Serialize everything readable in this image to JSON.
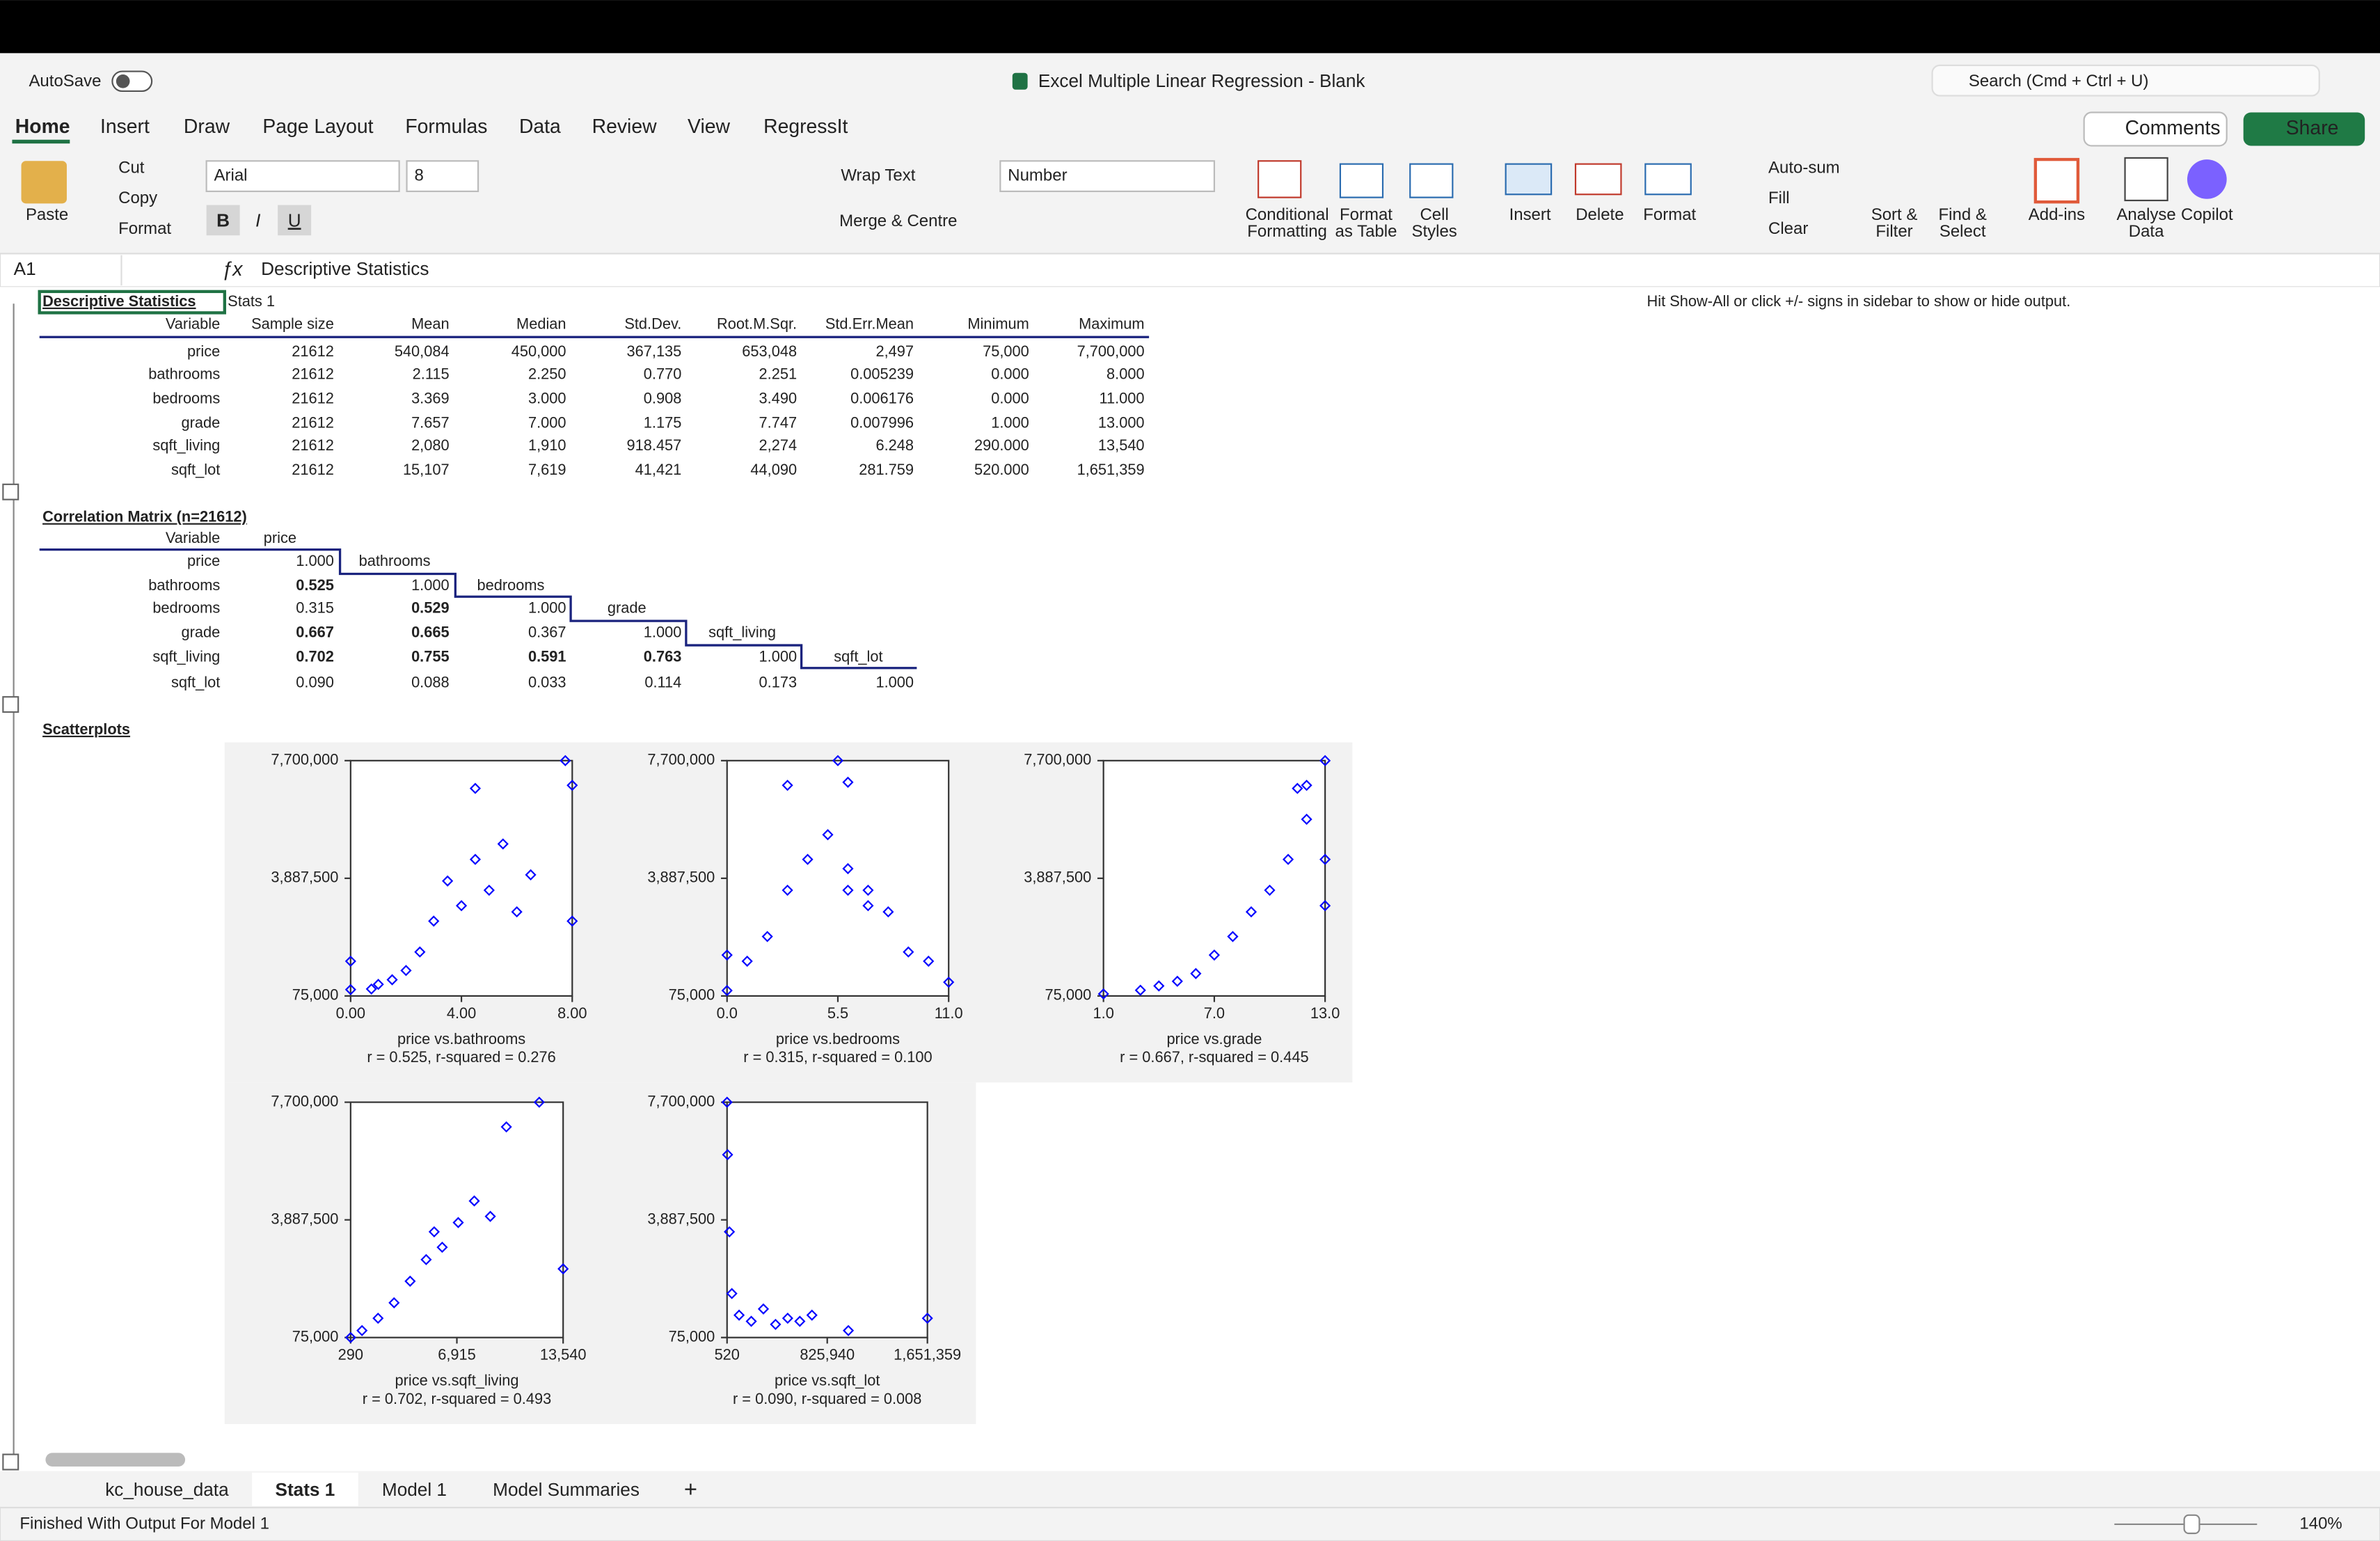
{
  "window": {
    "autosave": "AutoSave",
    "title": "Excel Multiple Linear Regression - Blank",
    "search": "Search (Cmd + Ctrl + U)"
  },
  "ribbon": {
    "tabs": [
      "Home",
      "Insert",
      "Draw",
      "Page Layout",
      "Formulas",
      "Data",
      "Review",
      "View",
      "RegressIt"
    ],
    "comments": "Comments",
    "share": "Share",
    "font": "Arial",
    "font_size": "8",
    "number_format": "Number",
    "format_letters": [
      "B",
      "I",
      "U"
    ],
    "buttons": [
      "Paste",
      "Cut",
      "Copy",
      "Format",
      "Wrap Text",
      "Merge & Centre",
      "Insert",
      "Delete",
      "Format",
      "Auto-sum",
      "Fill",
      "Clear",
      "Add-ins",
      "Copilot"
    ],
    "two_line_buttons": [
      [
        "Conditional",
        "Formatting"
      ],
      [
        "Format",
        "as Table"
      ],
      [
        "Cell",
        "Styles"
      ],
      [
        "Sort &",
        "Filter"
      ],
      [
        "Find &",
        "Select"
      ],
      [
        "Analyse",
        "Data"
      ]
    ]
  },
  "formula_bar": {
    "cell": "A1",
    "content": "Descriptive Statistics"
  },
  "sheet": {
    "hint": "Hit Show-All or click +/- signs in sidebar to show or hide output.",
    "stats_label": "Stats 1",
    "descriptive": {
      "title": "Descriptive Statistics",
      "header": [
        "Variable",
        "Sample size",
        "Mean",
        "Median",
        "Std.Dev.",
        "Root.M.Sqr.",
        "Std.Err.Mean",
        "Minimum",
        "Maximum"
      ],
      "rows": [
        [
          "price",
          "21612",
          "540,084",
          "450,000",
          "367,135",
          "653,048",
          "2,497",
          "75,000",
          "7,700,000"
        ],
        [
          "bathrooms",
          "21612",
          "2.115",
          "2.250",
          "0.770",
          "2.251",
          "0.005239",
          "0.000",
          "8.000"
        ],
        [
          "bedrooms",
          "21612",
          "3.369",
          "3.000",
          "0.908",
          "3.490",
          "0.006176",
          "0.000",
          "11.000"
        ],
        [
          "grade",
          "21612",
          "7.657",
          "7.000",
          "1.175",
          "7.747",
          "0.007996",
          "1.000",
          "13.000"
        ],
        [
          "sqft_living",
          "21612",
          "2,080",
          "1,910",
          "918.457",
          "2,274",
          "6.248",
          "290.000",
          "13,540"
        ],
        [
          "sqft_lot",
          "21612",
          "15,107",
          "7,619",
          "41,421",
          "44,090",
          "281.759",
          "520.000",
          "1,651,359"
        ]
      ]
    },
    "correlation": {
      "title": "Correlation Matrix (n=21612)",
      "header": "Variable",
      "variables": [
        "price",
        "bathrooms",
        "bedrooms",
        "grade",
        "sqft_living",
        "sqft_lot"
      ],
      "rows": [
        [
          "1.000"
        ],
        [
          "0.525",
          "1.000"
        ],
        [
          "0.315",
          "0.529",
          "1.000"
        ],
        [
          "0.667",
          "0.665",
          "0.367",
          "1.000"
        ],
        [
          "0.702",
          "0.755",
          "0.591",
          "0.763",
          "1.000"
        ],
        [
          "0.090",
          "0.088",
          "0.033",
          "0.114",
          "0.173",
          "1.000"
        ]
      ]
    },
    "scatter_title": "Scatterplots",
    "scatterplots": [
      {
        "type": "scatter",
        "color": "#0000ff",
        "xlabel": "price vs.bathrooms",
        "caption": "r = 0.525,  r-squared = 0.276",
        "xlim": [
          0,
          8
        ],
        "ylim": [
          75000,
          7700000
        ],
        "xticks": [
          {
            "value": 0,
            "label": "0.00"
          },
          {
            "value": 4,
            "label": "4.00"
          },
          {
            "value": 8,
            "label": "8.00"
          }
        ],
        "yticks": [
          {
            "value": 75000,
            "label": "75,000"
          },
          {
            "value": 3887500,
            "label": "3,887,500"
          },
          {
            "value": 7700000,
            "label": "7,700,000"
          }
        ],
        "x": [
          0,
          0,
          0.75,
          1,
          1.5,
          2,
          2.5,
          3,
          3.5,
          4,
          4.5,
          5,
          5.5,
          6,
          6.5,
          7.75,
          8,
          8,
          4.5
        ],
        "y": [
          280000,
          1200000,
          300000,
          450000,
          600000,
          900000,
          1500000,
          2500000,
          3800000,
          3000000,
          4500000,
          3500000,
          5000000,
          2800000,
          4000000,
          7700000,
          6900000,
          2500000,
          6800000
        ]
      },
      {
        "type": "scatter",
        "color": "#0000ff",
        "xlabel": "price vs.bedrooms",
        "caption": "r = 0.315,  r-squared = 0.100",
        "xlim": [
          0,
          11
        ],
        "ylim": [
          75000,
          7700000
        ],
        "xticks": [
          {
            "value": 0,
            "label": "0.0"
          },
          {
            "value": 5.5,
            "label": "5.5"
          },
          {
            "value": 11,
            "label": "11.0"
          }
        ],
        "yticks": [
          {
            "value": 75000,
            "label": "75,000"
          },
          {
            "value": 3887500,
            "label": "3,887,500"
          },
          {
            "value": 7700000,
            "label": "7,700,000"
          }
        ],
        "x": [
          0,
          0,
          1,
          2,
          3,
          3,
          4,
          5,
          5.5,
          6,
          6,
          7,
          8,
          9,
          10,
          11,
          7,
          6
        ],
        "y": [
          250000,
          1400000,
          1200000,
          2000000,
          3500000,
          6900000,
          4500000,
          5300000,
          7700000,
          3500000,
          7000000,
          3000000,
          2800000,
          1500000,
          1200000,
          520000,
          3500000,
          4200000
        ]
      },
      {
        "type": "scatter",
        "color": "#0000ff",
        "xlabel": "price vs.grade",
        "caption": "r = 0.667,  r-squared = 0.445",
        "xlim": [
          1,
          13
        ],
        "ylim": [
          75000,
          7700000
        ],
        "xticks": [
          {
            "value": 1,
            "label": "1.0"
          },
          {
            "value": 7,
            "label": "7.0"
          },
          {
            "value": 13,
            "label": "13.0"
          }
        ],
        "yticks": [
          {
            "value": 75000,
            "label": "75,000"
          },
          {
            "value": 3887500,
            "label": "3,887,500"
          },
          {
            "value": 7700000,
            "label": "7,700,000"
          }
        ],
        "x": [
          1,
          3,
          4,
          5,
          6,
          7,
          8,
          9,
          10,
          11,
          12,
          12,
          13,
          13,
          13,
          11.5
        ],
        "y": [
          140000,
          260000,
          400000,
          550000,
          800000,
          1400000,
          2000000,
          2800000,
          3500000,
          4500000,
          6900000,
          5800000,
          7700000,
          4500000,
          3000000,
          6800000
        ]
      },
      {
        "type": "scatter",
        "color": "#0000ff",
        "xlabel": "price vs.sqft_living",
        "caption": "r = 0.702,  r-squared = 0.493",
        "xlim": [
          290,
          13540
        ],
        "ylim": [
          75000,
          7700000
        ],
        "xticks": [
          290,
          {
            "value": 6915,
            "label": "6,915"
          },
          {
            "value": 13540,
            "label": "13,540"
          }
        ],
        "yticks": [
          {
            "value": 75000,
            "label": "75,000"
          },
          {
            "value": 3887500,
            "label": "3,887,500"
          },
          {
            "value": 7700000,
            "label": "7,700,000"
          }
        ],
        "x": [
          290,
          1000,
          2000,
          3000,
          4000,
          5000,
          6000,
          7000,
          8000,
          9000,
          10000,
          12050,
          13540,
          5500
        ],
        "y": [
          75000,
          300000,
          700000,
          1200000,
          1900000,
          2600000,
          3000000,
          3800000,
          4500000,
          4000000,
          6900000,
          7700000,
          2300000,
          3500000
        ]
      },
      {
        "type": "scatter",
        "color": "#0000ff",
        "xlabel": "price vs.sqft_lot",
        "caption": "r = 0.090,  r-squared = 0.008",
        "xlim": [
          520,
          1651359
        ],
        "ylim": [
          75000,
          7700000
        ],
        "xticks": [
          520,
          {
            "value": 825940,
            "label": "825,940"
          },
          {
            "value": 1651359,
            "label": "1,651,359"
          }
        ],
        "yticks": [
          {
            "value": 75000,
            "label": "75,000"
          },
          {
            "value": 3887500,
            "label": "3,887,500"
          },
          {
            "value": 7700000,
            "label": "7,700,000"
          }
        ],
        "x": [
          520,
          5000,
          20000,
          40000,
          100000,
          200000,
          300000,
          400000,
          500000,
          600000,
          700000,
          1651359,
          1000000
        ],
        "y": [
          7700000,
          6000000,
          3500000,
          1500000,
          800000,
          600000,
          1000000,
          500000,
          700000,
          600000,
          800000,
          700000,
          300000
        ]
      }
    ]
  },
  "sheet_tabs": [
    "kc_house_data",
    "Stats 1",
    "Model 1",
    "Model Summaries",
    "+"
  ],
  "status": {
    "message": "Finished With Output For Model 1",
    "zoom": "140%"
  }
}
